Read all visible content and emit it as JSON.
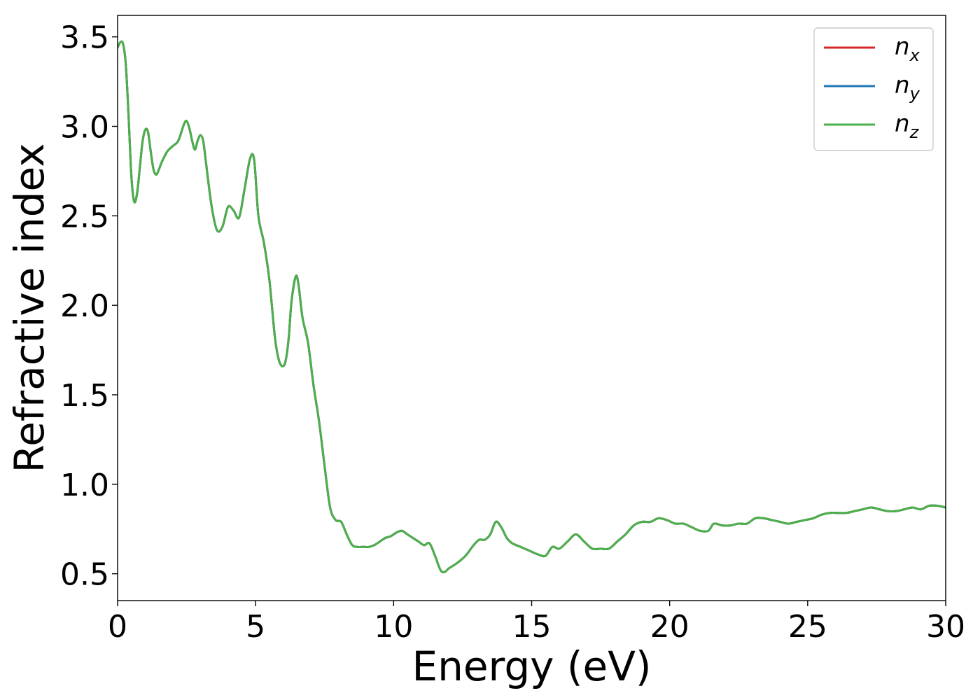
{
  "chart_data": {
    "type": "line",
    "xlabel": "Energy (eV)",
    "ylabel": "Refractive index",
    "xlim": [
      0,
      30
    ],
    "ylim": [
      0.35,
      3.62
    ],
    "xticks": [
      0,
      5,
      10,
      15,
      20,
      25,
      30
    ],
    "xtick_labels": [
      "0",
      "5",
      "10",
      "15",
      "20",
      "25",
      "30"
    ],
    "yticks": [
      0.5,
      1.0,
      1.5,
      2.0,
      2.5,
      3.0,
      3.5
    ],
    "ytick_labels": [
      "0.5",
      "1.0",
      "1.5",
      "2.0",
      "2.5",
      "3.0",
      "3.5"
    ],
    "grid": false,
    "legend_position": "top-right",
    "series": [
      {
        "name": "n",
        "subscript": "x",
        "color": "#d62728"
      },
      {
        "name": "n",
        "subscript": "y",
        "color": "#1f77b4"
      },
      {
        "name": "n",
        "subscript": "z",
        "color": "#4daf4a"
      }
    ],
    "x": [
      0.0,
      0.1,
      0.2,
      0.3,
      0.4,
      0.5,
      0.6,
      0.7,
      0.8,
      0.9,
      1.0,
      1.1,
      1.2,
      1.3,
      1.4,
      1.5,
      1.6,
      1.8,
      2.0,
      2.2,
      2.4,
      2.5,
      2.6,
      2.7,
      2.8,
      2.9,
      3.0,
      3.1,
      3.2,
      3.4,
      3.6,
      3.8,
      4.0,
      4.2,
      4.4,
      4.6,
      4.8,
      4.95,
      5.1,
      5.3,
      5.5,
      5.7,
      5.85,
      6.0,
      6.1,
      6.2,
      6.3,
      6.45,
      6.55,
      6.7,
      6.9,
      7.1,
      7.3,
      7.5,
      7.7,
      7.9,
      8.1,
      8.3,
      8.5,
      8.7,
      8.9,
      9.1,
      9.3,
      9.5,
      9.7,
      9.9,
      10.1,
      10.3,
      10.5,
      10.7,
      10.9,
      11.1,
      11.3,
      11.5,
      11.7,
      11.85,
      12.0,
      12.3,
      12.6,
      12.9,
      13.1,
      13.3,
      13.5,
      13.7,
      13.9,
      14.1,
      14.3,
      14.6,
      14.9,
      15.2,
      15.5,
      15.75,
      16.0,
      16.3,
      16.6,
      16.9,
      17.2,
      17.5,
      17.8,
      18.1,
      18.4,
      18.7,
      19.0,
      19.3,
      19.6,
      19.9,
      20.2,
      20.5,
      20.8,
      21.1,
      21.4,
      21.6,
      21.9,
      22.2,
      22.5,
      22.8,
      23.1,
      23.4,
      23.7,
      24.0,
      24.3,
      24.6,
      24.9,
      25.2,
      25.5,
      25.8,
      26.1,
      26.4,
      26.7,
      27.0,
      27.3,
      27.6,
      27.9,
      28.2,
      28.5,
      28.8,
      29.1,
      29.4,
      29.7,
      30.0
    ],
    "y": [
      3.44,
      3.47,
      3.46,
      3.34,
      3.05,
      2.72,
      2.58,
      2.62,
      2.76,
      2.91,
      2.98,
      2.97,
      2.86,
      2.76,
      2.73,
      2.76,
      2.8,
      2.86,
      2.89,
      2.92,
      3.01,
      3.03,
      2.99,
      2.92,
      2.87,
      2.92,
      2.95,
      2.92,
      2.8,
      2.56,
      2.42,
      2.44,
      2.55,
      2.53,
      2.49,
      2.65,
      2.82,
      2.81,
      2.5,
      2.35,
      2.14,
      1.82,
      1.69,
      1.66,
      1.7,
      1.82,
      2.02,
      2.16,
      2.12,
      1.93,
      1.79,
      1.55,
      1.35,
      1.1,
      0.87,
      0.8,
      0.79,
      0.72,
      0.66,
      0.65,
      0.65,
      0.65,
      0.66,
      0.68,
      0.7,
      0.71,
      0.73,
      0.74,
      0.72,
      0.7,
      0.68,
      0.66,
      0.67,
      0.6,
      0.52,
      0.51,
      0.53,
      0.56,
      0.6,
      0.66,
      0.69,
      0.69,
      0.72,
      0.79,
      0.76,
      0.7,
      0.67,
      0.65,
      0.63,
      0.61,
      0.6,
      0.65,
      0.64,
      0.68,
      0.72,
      0.68,
      0.64,
      0.64,
      0.64,
      0.68,
      0.72,
      0.77,
      0.79,
      0.79,
      0.81,
      0.8,
      0.78,
      0.78,
      0.76,
      0.74,
      0.74,
      0.78,
      0.77,
      0.77,
      0.78,
      0.78,
      0.81,
      0.81,
      0.8,
      0.79,
      0.78,
      0.79,
      0.8,
      0.81,
      0.83,
      0.84,
      0.84,
      0.84,
      0.85,
      0.86,
      0.87,
      0.86,
      0.85,
      0.85,
      0.86,
      0.87,
      0.86,
      0.88,
      0.88,
      0.87
    ]
  }
}
